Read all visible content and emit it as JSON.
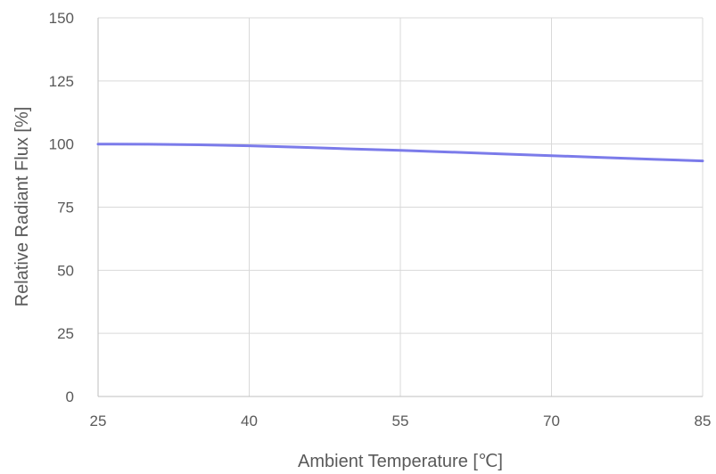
{
  "chart_data": {
    "type": "line",
    "title": "",
    "xlabel": "Ambient Temperature [℃]",
    "ylabel": "Relative Radiant Flux [%]",
    "xlim": [
      25,
      85
    ],
    "ylim": [
      0,
      150
    ],
    "x_ticks": [
      25,
      40,
      55,
      70,
      85
    ],
    "y_ticks": [
      0,
      25,
      50,
      75,
      100,
      125,
      150
    ],
    "grid": true,
    "legend": "none",
    "series": [
      {
        "color": "#7b7bea",
        "x": [
          25,
          30,
          35,
          40,
          45,
          50,
          55,
          60,
          65,
          70,
          75,
          80,
          85
        ],
        "y": [
          100,
          99.9,
          99.7,
          99.3,
          98.7,
          98.1,
          97.5,
          96.8,
          96.1,
          95.4,
          94.7,
          94.0,
          93.3
        ]
      }
    ]
  }
}
